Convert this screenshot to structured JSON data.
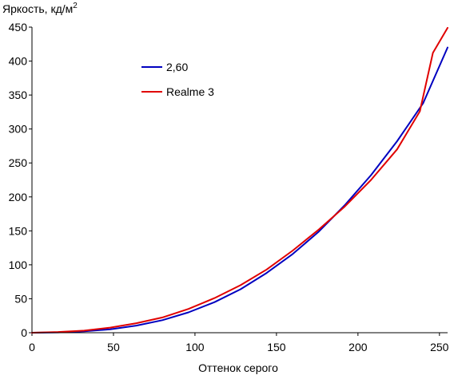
{
  "chart_data": {
    "type": "line",
    "title": "",
    "ylabel": "Яркость, кд/м",
    "ylabel_sup": "2",
    "xlabel": "Оттенок серого",
    "xlim": [
      0,
      255
    ],
    "ylim": [
      0,
      450
    ],
    "xticks": [
      0,
      50,
      100,
      150,
      200,
      250
    ],
    "yticks": [
      0,
      50,
      100,
      150,
      200,
      250,
      300,
      350,
      400,
      450
    ],
    "grid": false,
    "legend_position": "upper-left inside",
    "series": [
      {
        "name": "2,60",
        "color": "#0000c0",
        "x": [
          0,
          16,
          32,
          48,
          64,
          80,
          96,
          112,
          128,
          144,
          160,
          176,
          192,
          208,
          224,
          240,
          255
        ],
        "y": [
          0,
          0.5,
          2,
          5,
          10.5,
          18.5,
          30,
          45,
          64,
          88,
          116,
          149,
          188,
          232,
          282,
          338,
          420
        ]
      },
      {
        "name": "Realme 3",
        "color": "#e00000",
        "x": [
          0,
          16,
          32,
          48,
          64,
          80,
          96,
          112,
          128,
          144,
          160,
          176,
          192,
          208,
          224,
          238,
          246,
          255
        ],
        "y": [
          0,
          1,
          3,
          7.5,
          14,
          22.5,
          35,
          51,
          70,
          93,
          121,
          152,
          186,
          225,
          270,
          326,
          412,
          449
        ]
      }
    ]
  }
}
